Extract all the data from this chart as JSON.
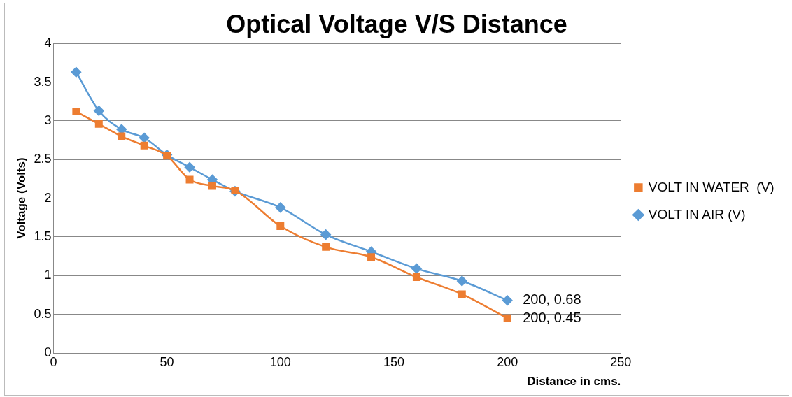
{
  "chart_data": {
    "type": "line",
    "title": "Optical Voltage V/S Distance",
    "xlabel": "Distance in cms.",
    "ylabel": "Voltage (Volts)",
    "x": [
      10,
      20,
      30,
      40,
      50,
      60,
      70,
      80,
      100,
      120,
      140,
      160,
      180,
      200
    ],
    "series": [
      {
        "name": "VOLT IN AIR (V)",
        "color": "#5b9bd5",
        "marker": "diamond",
        "values": [
          3.63,
          3.13,
          2.89,
          2.78,
          2.56,
          2.4,
          2.24,
          2.09,
          1.88,
          1.53,
          1.31,
          1.09,
          0.93,
          0.68
        ]
      },
      {
        "name": "VOLT IN WATER  (V)",
        "color": "#ed7d31",
        "marker": "square",
        "values": [
          3.12,
          2.96,
          2.8,
          2.68,
          2.55,
          2.24,
          2.16,
          2.1,
          1.64,
          1.37,
          1.24,
          0.98,
          0.76,
          0.45
        ]
      }
    ],
    "xlim": [
      0,
      250
    ],
    "xticks": [
      0,
      50,
      100,
      150,
      200,
      250
    ],
    "ylim": [
      0,
      4
    ],
    "yticks": [
      0,
      0.5,
      1,
      1.5,
      2,
      2.5,
      3,
      3.5,
      4
    ],
    "grid": "y",
    "legend": "right",
    "annotations": [
      {
        "text": "200, 0.68",
        "x": 200,
        "y": 0.68
      },
      {
        "text": "200, 0.45",
        "x": 200,
        "y": 0.45
      }
    ]
  }
}
